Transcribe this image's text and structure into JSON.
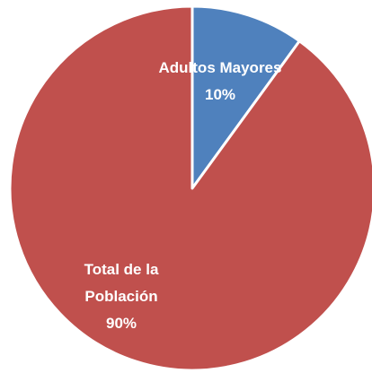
{
  "chart_data": {
    "type": "pie",
    "slices": [
      {
        "label": "Adultos Mayores",
        "value": 10,
        "value_label": "10%",
        "color": "#4f81bd"
      },
      {
        "label": "Total de la Población",
        "label_lines": [
          "Total de la",
          "Población"
        ],
        "value": 90,
        "value_label": "90%",
        "color": "#c0504d"
      }
    ],
    "start_angle_deg": 0,
    "direction": "clockwise",
    "slice_border_color": "#ffffff"
  }
}
